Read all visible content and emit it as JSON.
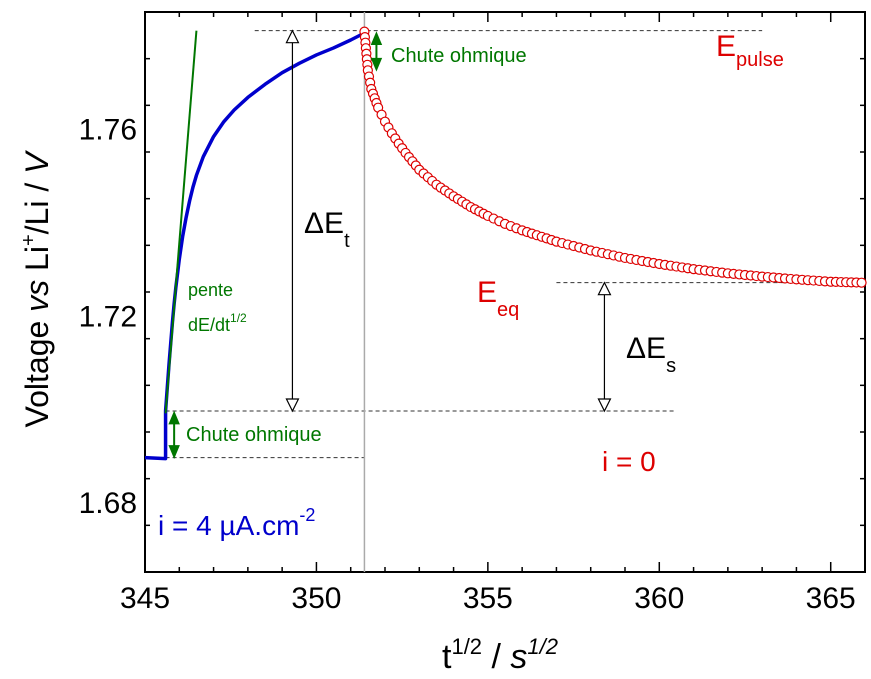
{
  "chart_data": {
    "type": "line",
    "title": "",
    "xlabel": {
      "base": "t",
      "base_sup": "1/2",
      "sep": " / ",
      "unit": "s",
      "unit_sup": "1/2"
    },
    "ylabel": {
      "a": "Voltage ",
      "vs": "vs",
      "b": " Li",
      "b_sup": "+",
      "c": "/Li / ",
      "unit": "V"
    },
    "xlim": [
      345,
      366
    ],
    "ylim": [
      1.665,
      1.785
    ],
    "x_ticks": [
      345,
      350,
      355,
      360,
      365
    ],
    "x_tick_labels": [
      "345",
      "350",
      "355",
      "360",
      "365"
    ],
    "y_ticks": [
      1.68,
      1.72,
      1.76
    ],
    "y_tick_labels": [
      "1.68",
      "1.72",
      "1.76"
    ],
    "grid": false,
    "series": [
      {
        "color": "#0000cc",
        "style": "line",
        "x": [
          345.0,
          345.6,
          345.6,
          345.65,
          345.7,
          345.75,
          345.8,
          345.85,
          345.9,
          346.0,
          346.1,
          346.2,
          346.3,
          346.4,
          346.5,
          346.7,
          347.0,
          347.3,
          347.6,
          348.0,
          348.5,
          349.0,
          349.5,
          350.0,
          350.5,
          351.0,
          351.4
        ],
        "y": [
          1.6895,
          1.6893,
          1.6995,
          1.7045,
          1.7095,
          1.714,
          1.7185,
          1.7225,
          1.726,
          1.732,
          1.737,
          1.741,
          1.7445,
          1.7475,
          1.75,
          1.754,
          1.7583,
          1.7615,
          1.764,
          1.7667,
          1.7695,
          1.772,
          1.774,
          1.7758,
          1.7773,
          1.779,
          1.7805
        ]
      },
      {
        "color": "#dd0000",
        "style": "markers",
        "marker": "open-circle",
        "x": [
          351.4,
          351.5,
          351.6,
          351.7,
          351.8,
          351.9,
          352.0,
          352.2,
          352.4,
          352.6,
          352.8,
          353.0,
          353.5,
          354.0,
          354.5,
          355.0,
          355.5,
          356.0,
          357.0,
          358.0,
          359.0,
          360.0,
          361.0,
          362.0,
          363.0,
          364.0,
          365.0,
          365.9
        ],
        "y": [
          1.7808,
          1.7725,
          1.7685,
          1.7665,
          1.7645,
          1.763,
          1.7615,
          1.759,
          1.7568,
          1.7548,
          1.753,
          1.7512,
          1.748,
          1.7455,
          1.7432,
          1.7413,
          1.7396,
          1.7382,
          1.7358,
          1.7339,
          1.7323,
          1.731,
          1.7299,
          1.729,
          1.7283,
          1.7277,
          1.7272,
          1.727
        ]
      },
      {
        "color": "#007700",
        "style": "line",
        "x": [
          345.6,
          346.5
        ],
        "y": [
          1.699,
          1.781
        ]
      }
    ],
    "annotations": [
      {
        "id": "chute1",
        "text": "Chute ohmique",
        "color": "#007700"
      },
      {
        "id": "chute2",
        "text": "Chute ohmique",
        "color": "#007700"
      },
      {
        "id": "epulse",
        "main": "E",
        "sub": "pulse",
        "color": "#dd0000"
      },
      {
        "id": "eeq",
        "main": "E",
        "sub": "eq",
        "color": "#dd0000"
      },
      {
        "id": "dEt",
        "main": "ΔE",
        "sub": "t",
        "color": "#000000"
      },
      {
        "id": "dEs",
        "main": "ΔE",
        "sub": "s",
        "color": "#000000"
      },
      {
        "id": "pente",
        "line1": "pente",
        "line2": "dE/dt",
        "sup": "1/2",
        "color": "#007700"
      },
      {
        "id": "i0",
        "text": "i = 0",
        "color": "#dd0000"
      },
      {
        "id": "i4",
        "text": "i = 4 µA.cm",
        "sup": "-2",
        "color": "#0000cc"
      }
    ]
  }
}
